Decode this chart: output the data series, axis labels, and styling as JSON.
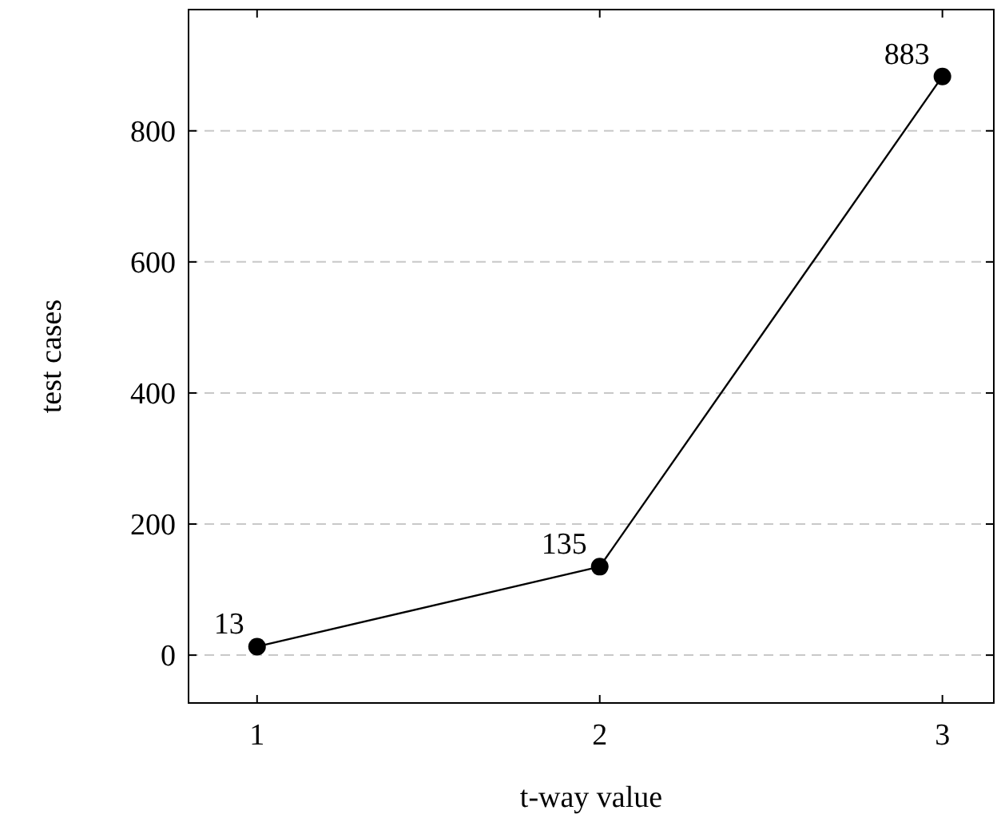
{
  "chart_data": {
    "type": "line",
    "xlabel": "t-way value",
    "ylabel": "test cases",
    "x": [
      1,
      2,
      3
    ],
    "series": [
      {
        "color": "#000000",
        "values": [
          13,
          135,
          883
        ]
      }
    ],
    "xlim": [
      0.8,
      3.15
    ],
    "xticks": [
      1,
      2,
      3
    ],
    "ylim": [
      -73,
      985
    ],
    "yticks": [
      0,
      200,
      400,
      600,
      800
    ],
    "grid": "y",
    "marker": "circle",
    "line_style": "solid",
    "data_labels": true
  }
}
